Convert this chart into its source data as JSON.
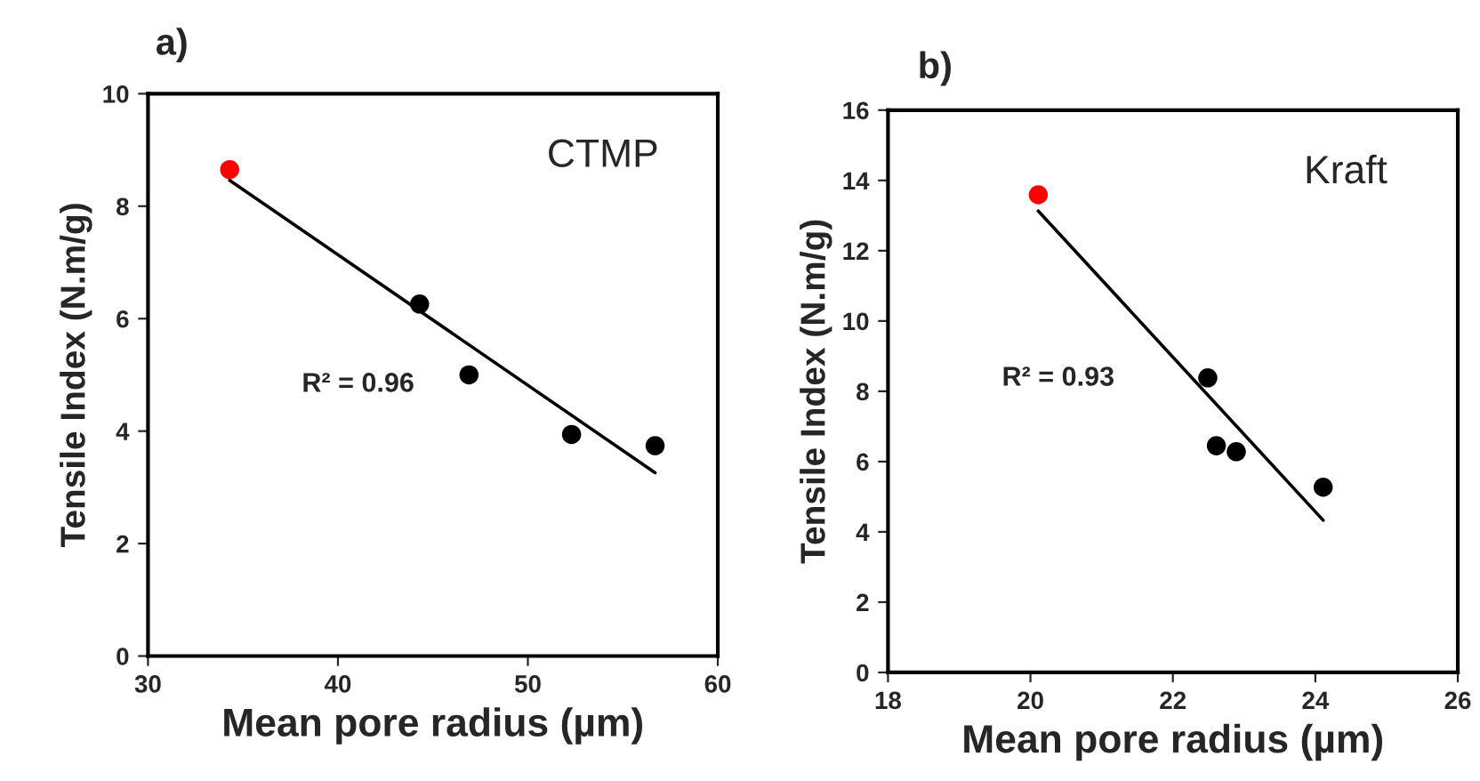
{
  "chart_data": [
    {
      "type": "scatter",
      "title": "a)",
      "xlabel": "Mean pore radius (µm)",
      "ylabel": "Tensile Index (N.m/g)",
      "xlim": [
        30,
        60
      ],
      "xticks": [
        30,
        40,
        50,
        60
      ],
      "ylim": [
        0,
        10
      ],
      "yticks": [
        0,
        2,
        4,
        6,
        8,
        10
      ],
      "grid": false,
      "legend": false,
      "series": [
        {
          "marker": "circle",
          "color": "#ff0000",
          "x": [
            34.3
          ],
          "values": [
            8.65
          ]
        },
        {
          "marker": "circle",
          "color": "#000000",
          "x": [
            44.3,
            46.9,
            52.3,
            56.7
          ],
          "values": [
            6.26,
            5.0,
            3.94,
            3.74
          ]
        },
        {
          "type": "line",
          "color": "#000000",
          "x": [
            34.3,
            56.7
          ],
          "values": [
            8.46,
            3.26
          ]
        }
      ],
      "annotations": [
        "CTMP",
        "R² = 0.96"
      ]
    },
    {
      "type": "scatter",
      "title": "b)",
      "xlabel": "Mean pore radius (µm)",
      "ylabel": "Tensile Index (N.m/g)",
      "xlim": [
        18,
        26
      ],
      "xticks": [
        18,
        20,
        22,
        24,
        26
      ],
      "ylim": [
        0,
        16
      ],
      "yticks": [
        0,
        2,
        4,
        6,
        8,
        10,
        12,
        14,
        16
      ],
      "grid": false,
      "legend": false,
      "series": [
        {
          "marker": "circle",
          "color": "#ff0000",
          "x": [
            20.11
          ],
          "values": [
            13.59
          ]
        },
        {
          "marker": "circle",
          "color": "#000000",
          "x": [
            22.49,
            22.61,
            22.89,
            24.11
          ],
          "values": [
            8.38,
            6.45,
            6.28,
            5.27
          ]
        },
        {
          "type": "line",
          "color": "#000000",
          "x": [
            20.11,
            24.11
          ],
          "values": [
            13.13,
            4.33
          ]
        }
      ],
      "annotations": [
        "Kraft",
        "R² = 0.93"
      ]
    }
  ]
}
